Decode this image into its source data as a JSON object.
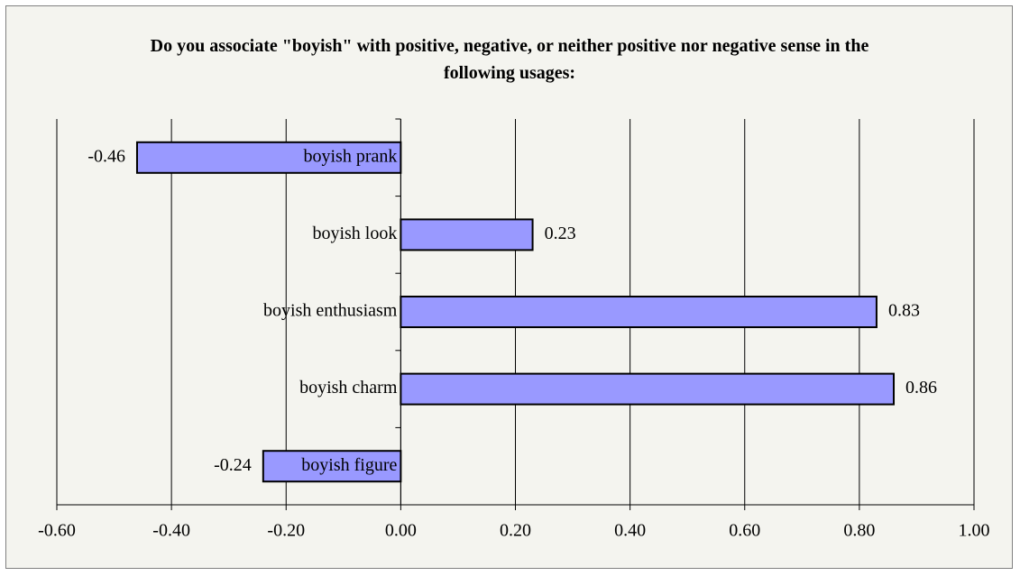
{
  "chart_data": {
    "type": "hbar",
    "title": "Do you associate \"boyish\" with positive, negative, or neither positive nor negative sense in the following usages:",
    "categories": [
      "boyish prank",
      "boyish look",
      "boyish enthusiasm",
      "boyish charm",
      "boyish figure"
    ],
    "values": [
      -0.46,
      0.23,
      0.83,
      0.86,
      -0.24
    ],
    "color": "#9999ff",
    "xlim": [
      -0.6,
      1.0
    ],
    "xticks": [
      {
        "value": -0.6,
        "label": "-0.60"
      },
      {
        "value": -0.4,
        "label": "-0.40"
      },
      {
        "value": -0.2,
        "label": "-0.20"
      },
      {
        "value": 0,
        "label": "0.00"
      },
      {
        "value": 0.2,
        "label": "0.20"
      },
      {
        "value": 0.4,
        "label": "0.40"
      },
      {
        "value": 0.6,
        "label": "0.60"
      },
      {
        "value": 0.8,
        "label": "0.80"
      },
      {
        "value": 1.0,
        "label": "1.00"
      }
    ],
    "grid": true
  }
}
